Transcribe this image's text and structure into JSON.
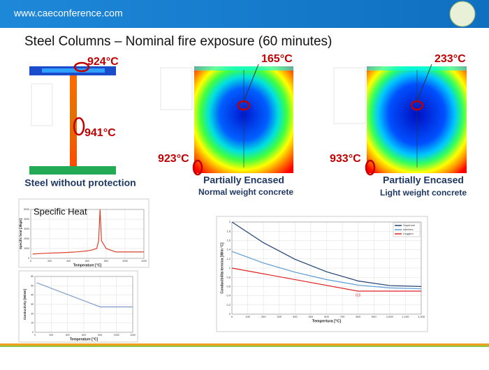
{
  "header": {
    "url": "www.caeconference.com",
    "title": "Steel Columns – Nominal fire exposure (60 minutes)"
  },
  "panels": [
    {
      "caption": "Steel without protection",
      "temps": [
        "924°C",
        "941°C"
      ]
    },
    {
      "caption": "Partially Encased",
      "subcaption": "Normal weight concrete",
      "temps": [
        "165°C",
        "923°C"
      ]
    },
    {
      "caption": "Partially Encased",
      "subcaption": "Light weight concrete",
      "temps": [
        "233°C",
        "933°C"
      ]
    }
  ],
  "chart_data": [
    {
      "type": "line",
      "title": "Specific Heat",
      "x_label": "Temperature [°C]",
      "y_label": "Specific heat [J/kgK]",
      "xlim": [
        0,
        1200
      ],
      "xticks": [
        0,
        200,
        400,
        600,
        800,
        1000,
        1200
      ],
      "ylim": [
        0,
        5000
      ],
      "yticks": [
        0,
        1000,
        2000,
        3000,
        4000,
        5000
      ],
      "grid": true,
      "series": [
        {
          "color": "#d9412b",
          "x": [
            20,
            100,
            200,
            300,
            400,
            500,
            600,
            650,
            700,
            720,
            735,
            750,
            800,
            900,
            1000,
            1100,
            1200
          ],
          "values": [
            440,
            488,
            530,
            565,
            606,
            667,
            760,
            850,
            1010,
            1800,
            5000,
            1800,
            1000,
            650,
            650,
            650,
            650
          ]
        }
      ]
    },
    {
      "type": "line",
      "x_label": "Temperature [°C]",
      "y_label": "Conductivity [W/mK]",
      "xlim": [
        0,
        1200
      ],
      "xticks": [
        0,
        200,
        400,
        600,
        800,
        1000,
        1200
      ],
      "ylim": [
        0,
        60
      ],
      "yticks": [
        0,
        10,
        20,
        30,
        40,
        50,
        60
      ],
      "grid": true,
      "series": [
        {
          "color": "#7f9cc9",
          "x": [
            20,
            800,
            1200
          ],
          "values": [
            53.3,
            27.3,
            27.3
          ]
        }
      ]
    },
    {
      "type": "line",
      "x_label": "Tempertura [°C]",
      "y_label": "Conducibilita termica [W/m °C]",
      "annotation": "0,5",
      "xlim": [
        0,
        1200
      ],
      "xticks": [
        0,
        100,
        200,
        300,
        400,
        500,
        600,
        700,
        800,
        900,
        {
          "value": 1000,
          "label": "1,000"
        },
        {
          "value": 1100,
          "label": "1,100"
        },
        {
          "value": 1200,
          "label": "1,200"
        }
      ],
      "ylim": [
        0,
        2
      ],
      "yticks": [
        0,
        {
          "value": 0.2,
          "label": "0,2"
        },
        {
          "value": 0.4,
          "label": "0,4"
        },
        {
          "value": 0.6,
          "label": "0,6"
        },
        {
          "value": 0.8,
          "label": "0,8"
        },
        1,
        {
          "value": 1.2,
          "label": "1,2"
        },
        {
          "value": 1.4,
          "label": "1,4"
        },
        {
          "value": 1.6,
          "label": "1,6"
        },
        {
          "value": 1.8,
          "label": "1,8"
        },
        2
      ],
      "grid": true,
      "series": [
        {
          "name": "Superiore",
          "color": "#1f3f73",
          "x": [
            0,
            200,
            400,
            600,
            800,
            1000,
            1200
          ],
          "values": [
            2,
            1.55,
            1.19,
            0.92,
            0.72,
            0.62,
            0.6
          ]
        },
        {
          "name": "Inferiore",
          "color": "#5b9bd5",
          "x": [
            0,
            200,
            400,
            600,
            800,
            1000,
            1200
          ],
          "values": [
            1.36,
            1.11,
            0.91,
            0.75,
            0.63,
            0.57,
            0.55
          ]
        },
        {
          "name": "Leggero",
          "color": "#e02020",
          "x": [
            0,
            800,
            1200
          ],
          "values": [
            1,
            0.5,
            0.5
          ]
        }
      ]
    }
  ]
}
